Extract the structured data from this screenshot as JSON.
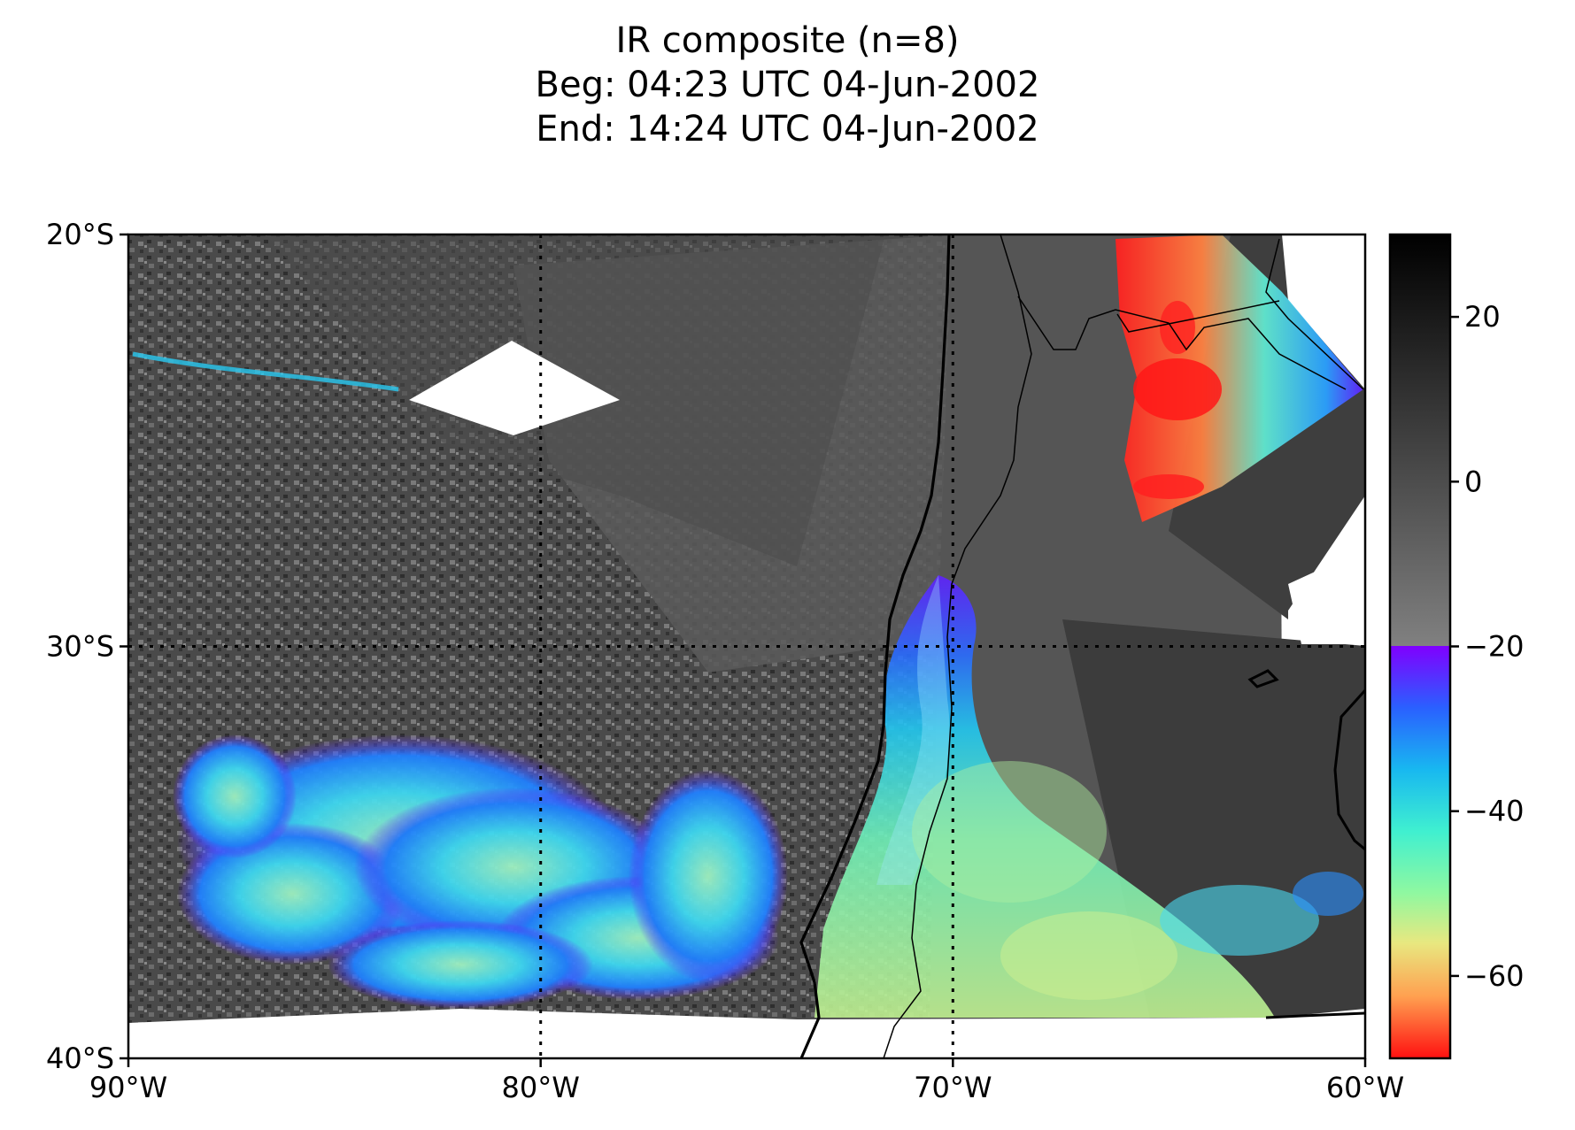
{
  "title": {
    "line1": "IR composite (n=8)",
    "line2": "Beg: 04:23 UTC 04-Jun-2002",
    "line3": "End: 14:24 UTC 04-Jun-2002"
  },
  "map": {
    "extent": {
      "lon": [
        -90,
        -60
      ],
      "lat": [
        -40,
        -20
      ]
    },
    "lon_ticks": [
      {
        "value": -90,
        "label": "90°W"
      },
      {
        "value": -80,
        "label": "80°W"
      },
      {
        "value": -70,
        "label": "70°W"
      },
      {
        "value": -60,
        "label": "60°W"
      }
    ],
    "lat_ticks": [
      {
        "value": -20,
        "label": "20°S"
      },
      {
        "value": -30,
        "label": "30°S"
      },
      {
        "value": -40,
        "label": "40°S"
      }
    ],
    "gridlines": {
      "lon": [
        -80,
        -70
      ],
      "lat": [
        -30
      ],
      "style": "dotted"
    }
  },
  "colorbar": {
    "range": [
      -70,
      30
    ],
    "threshold": -20,
    "ticks": [
      {
        "value": 20,
        "label": "20"
      },
      {
        "value": 0,
        "label": "0"
      },
      {
        "value": -20,
        "label": "−20"
      },
      {
        "value": -40,
        "label": "−40"
      },
      {
        "value": -60,
        "label": "−60"
      }
    ],
    "colors": {
      "gray_top": "#000000",
      "gray_bottom": "#808080",
      "cold_stops": [
        "#8000ff",
        "#1e90ff",
        "#28d8f0",
        "#55ffb0",
        "#c8f080",
        "#ffb050",
        "#ff6030",
        "#ff1010"
      ]
    }
  }
}
